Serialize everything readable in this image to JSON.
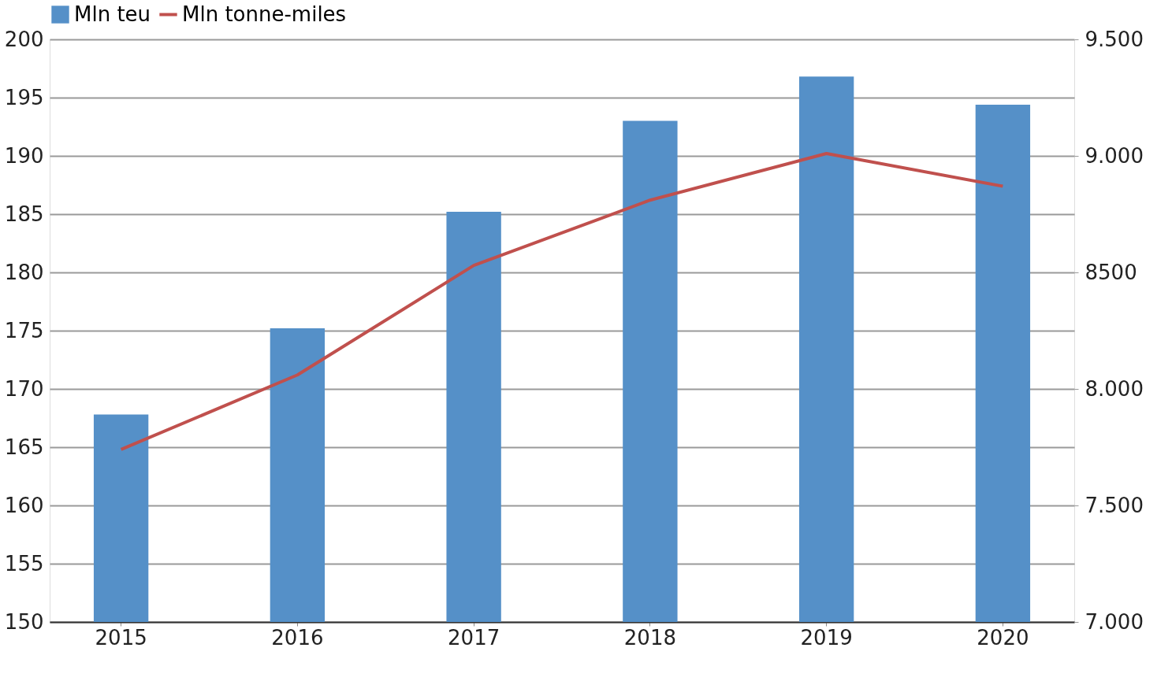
{
  "chart_data": {
    "type": "bar",
    "categories": [
      "2015",
      "2016",
      "2017",
      "2018",
      "2019",
      "2020"
    ],
    "series": [
      {
        "name": "Mln teu",
        "color": "#5590c8",
        "values": [
          167.8,
          175.2,
          185.2,
          193.0,
          196.8,
          194.4
        ]
      },
      {
        "name": "Mln tonne-miles",
        "type": "line",
        "axis": "y2",
        "color": "#c0504d",
        "values": [
          7740,
          8060,
          8530,
          8810,
          9010,
          8870
        ]
      }
    ],
    "ylim": [
      150,
      200
    ],
    "yticks": [
      150,
      155,
      160,
      165,
      170,
      175,
      180,
      185,
      190,
      195,
      200
    ],
    "y2lim": [
      7000,
      9500
    ],
    "y2ticks": [
      {
        "value": 7000,
        "label": "7.000"
      },
      {
        "value": 7500,
        "label": "7.500"
      },
      {
        "value": 8000,
        "label": "8.000"
      },
      {
        "value": 8500,
        "label": "8500"
      },
      {
        "value": 9000,
        "label": "9.000"
      },
      {
        "value": 9500,
        "label": "9.500"
      }
    ],
    "grid": "y",
    "legend": "top",
    "marker": "none",
    "line_style": "solid"
  }
}
